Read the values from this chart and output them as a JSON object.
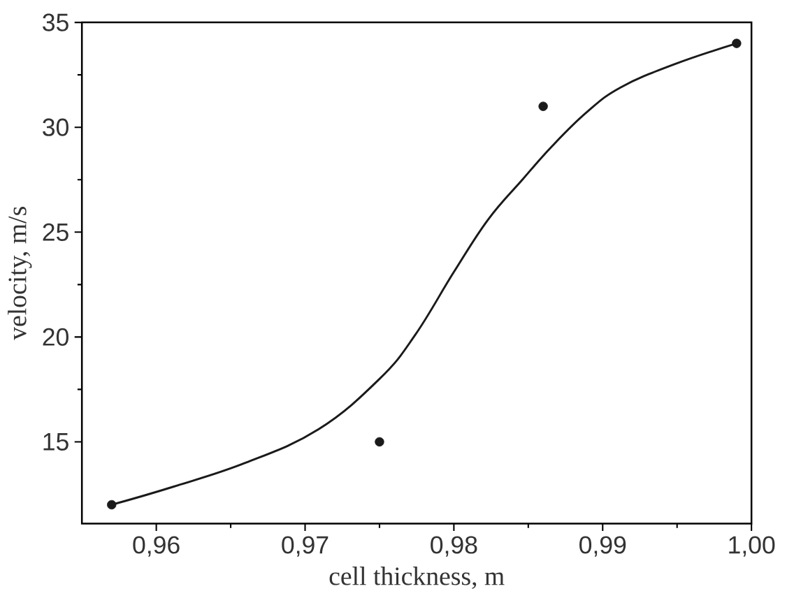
{
  "chart_data": {
    "type": "scatter",
    "xlabel": "cell thickness, m",
    "ylabel": "velocity, m/s",
    "xlim": [
      0.955,
      1.0
    ],
    "ylim": [
      11.1,
      35
    ],
    "xticks": [
      {
        "value": 0.96,
        "label": "0,96"
      },
      {
        "value": 0.97,
        "label": "0,97"
      },
      {
        "value": 0.98,
        "label": "0,98"
      },
      {
        "value": 0.99,
        "label": "0,99"
      },
      {
        "value": 1.0,
        "label": "1,00"
      }
    ],
    "yticks": [
      15,
      20,
      25,
      30,
      35
    ],
    "grid": false,
    "series": [
      {
        "color": "#1a1a1a",
        "marker": "circle",
        "x": [
          0.957,
          0.975,
          0.986,
          0.999
        ],
        "values": [
          12,
          15,
          31,
          34
        ]
      },
      {
        "type": "line",
        "color": "#1a1a1a",
        "marker": "none",
        "x": [
          0.957,
          0.9611,
          0.966,
          0.9709,
          0.975,
          0.9774,
          0.98,
          0.9823,
          0.9846,
          0.9866,
          0.9889,
          0.9912,
          0.9948,
          0.999
        ],
        "values": [
          12,
          12.85,
          14.0,
          15.6,
          18.0,
          20.1,
          23.1,
          25.6,
          27.5,
          29.1,
          30.7,
          31.9,
          33.0,
          34.0
        ]
      }
    ]
  }
}
